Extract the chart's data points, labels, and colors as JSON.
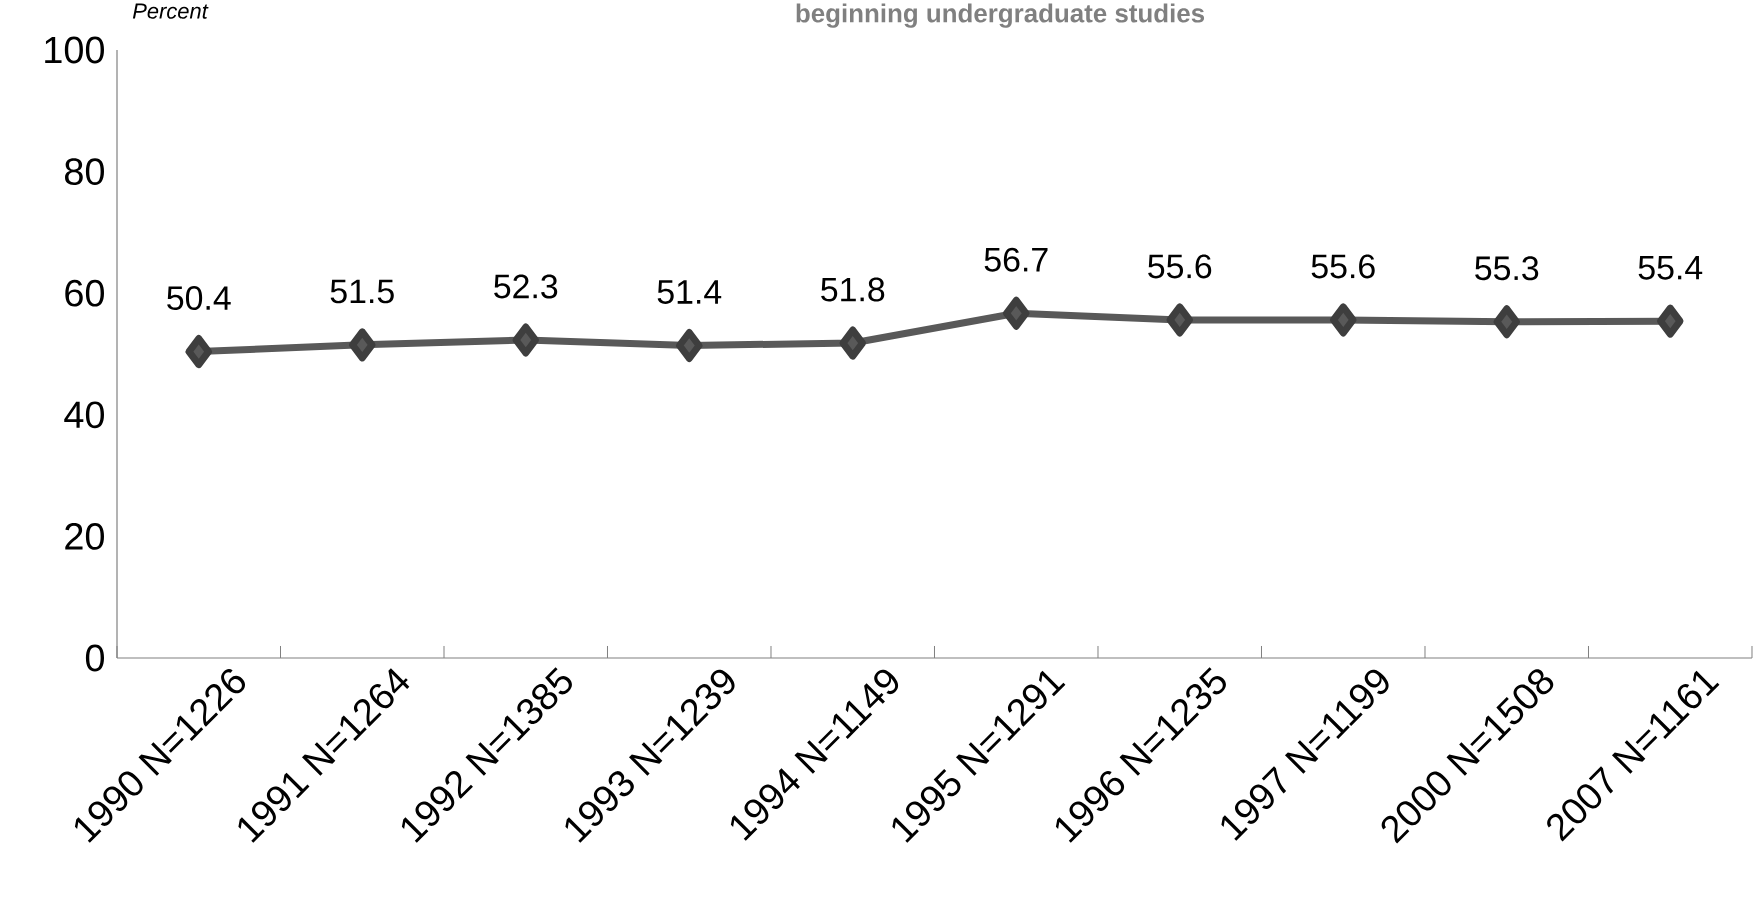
{
  "chart_data": {
    "type": "line",
    "title": "beginning undergraduate studies",
    "ylabel": "Percent",
    "categories": [
      "1990 N=1226",
      "1991 N=1264",
      "1992 N=1385",
      "1993 N=1239",
      "1994 N=1149",
      "1995 N=1291",
      "1996 N=1235",
      "1997 N=1199",
      "2000 N=1508",
      "2007 N=1161"
    ],
    "values": [
      50.4,
      51.5,
      52.3,
      51.4,
      51.8,
      56.7,
      55.6,
      55.6,
      55.3,
      55.4
    ],
    "color": "#595959",
    "marker": "diamond",
    "line_style": "solid",
    "data_labels": true,
    "grid": false,
    "ylim": [
      0,
      100
    ],
    "yticks": [
      0,
      20,
      40,
      60,
      80,
      100
    ]
  }
}
